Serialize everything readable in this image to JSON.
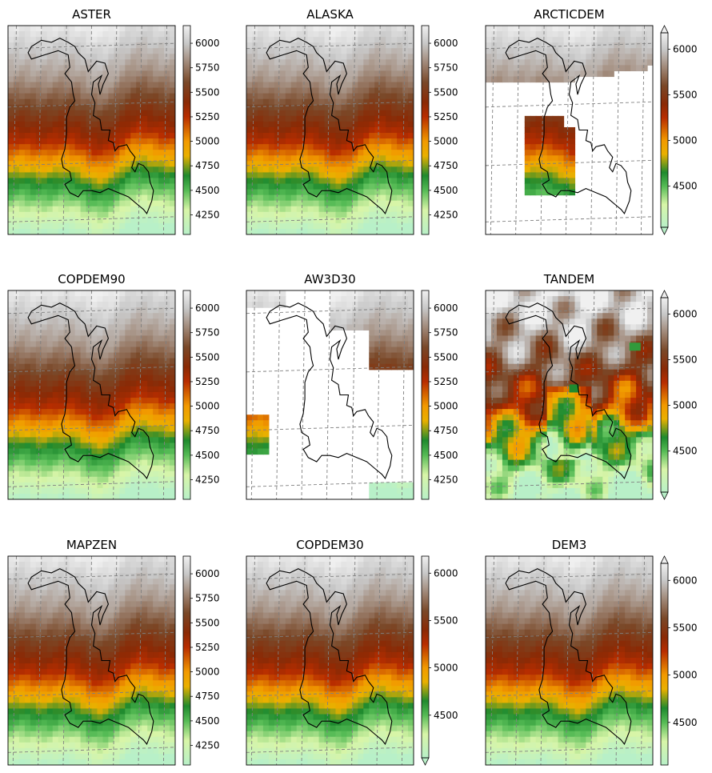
{
  "chart_data": [
    {
      "type": "heatmap",
      "title": "ASTER",
      "colorbar": {
        "ticks": [
          4250,
          4500,
          4750,
          5000,
          5250,
          5500,
          5750,
          6000
        ],
        "range": [
          4050,
          6180
        ],
        "extend": "neither"
      },
      "coverage": "full",
      "style": "smooth"
    },
    {
      "type": "heatmap",
      "title": "ALASKA",
      "colorbar": {
        "ticks": [
          4250,
          4500,
          4750,
          5000,
          5250,
          5500,
          5750,
          6000
        ],
        "range": [
          4050,
          6180
        ],
        "extend": "neither"
      },
      "coverage": "full",
      "style": "smooth"
    },
    {
      "type": "heatmap",
      "title": "ARCTICDEM",
      "colorbar": {
        "ticks": [
          4500,
          5000,
          5500,
          6000
        ],
        "range": [
          4050,
          6180
        ],
        "extend": "both"
      },
      "coverage": "partial",
      "style": "smooth"
    },
    {
      "type": "heatmap",
      "title": "COPDEM90",
      "colorbar": {
        "ticks": [
          4250,
          4500,
          4750,
          5000,
          5250,
          5500,
          5750,
          6000
        ],
        "range": [
          4050,
          6180
        ],
        "extend": "neither"
      },
      "coverage": "full",
      "style": "smooth"
    },
    {
      "type": "heatmap",
      "title": "AW3D30",
      "colorbar": {
        "ticks": [
          4250,
          4500,
          4750,
          5000,
          5250,
          5500,
          5750,
          6000
        ],
        "range": [
          4050,
          6180
        ],
        "extend": "neither"
      },
      "coverage": "sparse",
      "style": "smooth"
    },
    {
      "type": "heatmap",
      "title": "TANDEM",
      "colorbar": {
        "ticks": [
          4500,
          5000,
          5500,
          6000
        ],
        "range": [
          4050,
          6180
        ],
        "extend": "both"
      },
      "coverage": "full",
      "style": "noisy"
    },
    {
      "type": "heatmap",
      "title": "MAPZEN",
      "colorbar": {
        "ticks": [
          4250,
          4500,
          4750,
          5000,
          5250,
          5500,
          5750,
          6000
        ],
        "range": [
          4050,
          6180
        ],
        "extend": "neither"
      },
      "coverage": "full",
      "style": "smooth"
    },
    {
      "type": "heatmap",
      "title": "COPDEM30",
      "colorbar": {
        "ticks": [
          4500,
          5000,
          5500,
          6000
        ],
        "range": [
          4050,
          6180
        ],
        "extend": "min"
      },
      "coverage": "full",
      "style": "smooth"
    },
    {
      "type": "heatmap",
      "title": "DEM3",
      "colorbar": {
        "ticks": [
          4500,
          5000,
          5500,
          6000
        ],
        "range": [
          4050,
          6180
        ],
        "extend": "max"
      },
      "coverage": "full",
      "style": "smooth"
    }
  ],
  "colormap": {
    "name": "terrain-like",
    "stops": [
      {
        "v": 4050,
        "c": "#b8f0c8"
      },
      {
        "v": 4300,
        "c": "#d8f5a8"
      },
      {
        "v": 4500,
        "c": "#55bb55"
      },
      {
        "v": 4650,
        "c": "#1f8a2e"
      },
      {
        "v": 4850,
        "c": "#e9b000"
      },
      {
        "v": 5000,
        "c": "#f29a00"
      },
      {
        "v": 5250,
        "c": "#b82d00"
      },
      {
        "v": 5400,
        "c": "#8a2a05"
      },
      {
        "v": 5600,
        "c": "#7a4828"
      },
      {
        "v": 5800,
        "c": "#a08878"
      },
      {
        "v": 6000,
        "c": "#c8c8c8"
      },
      {
        "v": 6180,
        "c": "#f0f0f0"
      }
    ]
  },
  "grid": {
    "on": true,
    "style": "dashed",
    "color": "#808080"
  },
  "outline_color": "#000000"
}
